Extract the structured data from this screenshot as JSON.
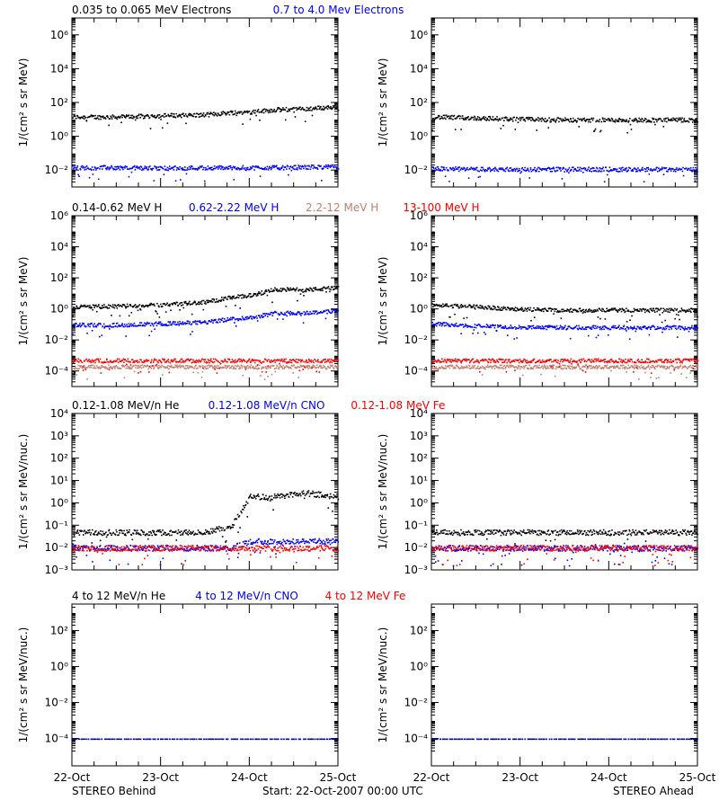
{
  "footer": {
    "left": "STEREO Behind",
    "center": "Start: 22-Oct-2007 00:00 UTC",
    "right": "STEREO Ahead"
  },
  "x_tick_labels": [
    "22-Oct",
    "23-Oct",
    "24-Oct",
    "25-Oct"
  ],
  "colors": {
    "black": "#000000",
    "blue": "#0000ff",
    "tan": "#c08070",
    "red": "#ff0000"
  },
  "chart_data": [
    {
      "type": "scatter",
      "panel": "electrons",
      "side": "behind",
      "yscale": "log",
      "ylabel": "1/(cm² s sr MeV)",
      "ylim": [
        0.001,
        10000000
      ],
      "yticks": [
        {
          "v": 0.01,
          "label": "10⁻²"
        },
        {
          "v": 1,
          "label": "10⁰"
        },
        {
          "v": 100,
          "label": "10²"
        },
        {
          "v": 10000,
          "label": "10⁴"
        },
        {
          "v": 1000000,
          "label": "10⁶"
        }
      ],
      "x": [
        0,
        0.5,
        1,
        1.5,
        1.8,
        2,
        2.3,
        2.6,
        3
      ],
      "series": [
        {
          "name": "0.035 to 0.065 MeV Electrons",
          "color": "#000000",
          "values": [
            15,
            15,
            18,
            20,
            28,
            30,
            40,
            45,
            60
          ]
        },
        {
          "name": "0.7 to 4.0 Mev Electrons",
          "color": "#0000ff",
          "values": [
            0.015,
            0.015,
            0.014,
            0.015,
            0.015,
            0.015,
            0.015,
            0.016,
            0.017
          ]
        }
      ]
    },
    {
      "type": "scatter",
      "panel": "electrons",
      "side": "ahead",
      "yscale": "log",
      "ylabel": "1/(cm² s sr MeV)",
      "ylim": [
        0.001,
        10000000
      ],
      "yticks": [
        {
          "v": 0.01,
          "label": "10⁻²"
        },
        {
          "v": 1,
          "label": "10⁰"
        },
        {
          "v": 100,
          "label": "10²"
        },
        {
          "v": 10000,
          "label": "10⁴"
        },
        {
          "v": 1000000,
          "label": "10⁶"
        }
      ],
      "x": [
        0,
        0.5,
        1,
        1.5,
        2,
        2.5,
        3
      ],
      "series": [
        {
          "name": "0.035 to 0.065 MeV Electrons",
          "color": "#000000",
          "values": [
            15,
            13,
            11,
            10,
            10,
            10,
            10
          ]
        },
        {
          "name": "0.7 to 4.0 Mev Electrons",
          "color": "#0000ff",
          "values": [
            0.013,
            0.012,
            0.012,
            0.012,
            0.012,
            0.012,
            0.012
          ]
        }
      ]
    },
    {
      "type": "scatter",
      "panel": "protons",
      "side": "behind",
      "yscale": "log",
      "ylabel": "1/(cm² s sr MeV)",
      "ylim": [
        1e-05,
        1000000
      ],
      "yticks": [
        {
          "v": 0.0001,
          "label": "10⁻⁴"
        },
        {
          "v": 0.01,
          "label": "10⁻²"
        },
        {
          "v": 1,
          "label": "10⁰"
        },
        {
          "v": 100,
          "label": "10²"
        },
        {
          "v": 10000,
          "label": "10⁴"
        },
        {
          "v": 1000000,
          "label": "10⁶"
        }
      ],
      "x": [
        0,
        0.5,
        1,
        1.5,
        1.8,
        2,
        2.3,
        2.6,
        3
      ],
      "series": [
        {
          "name": "0.14-0.62 MeV H",
          "color": "#000000",
          "values": [
            1.5,
            1.6,
            2,
            3,
            6,
            8,
            20,
            18,
            25
          ]
        },
        {
          "name": "0.62-2.22 MeV H",
          "color": "#0000ff",
          "values": [
            0.1,
            0.1,
            0.12,
            0.15,
            0.25,
            0.3,
            0.6,
            0.6,
            0.8
          ]
        },
        {
          "name": "2.2-12 MeV H",
          "color": "#c08070",
          "values": [
            0.0002,
            0.0002,
            0.0002,
            0.0002,
            0.0002,
            0.0002,
            0.0002,
            0.0002,
            0.0002
          ]
        },
        {
          "name": "13-100 MeV H",
          "color": "#ff0000",
          "values": [
            0.0005,
            0.0005,
            0.0005,
            0.0005,
            0.0005,
            0.0005,
            0.0005,
            0.0005,
            0.0005
          ]
        }
      ]
    },
    {
      "type": "scatter",
      "panel": "protons",
      "side": "ahead",
      "yscale": "log",
      "ylabel": "1/(cm² s sr MeV)",
      "ylim": [
        1e-05,
        1000000
      ],
      "yticks": [
        {
          "v": 0.0001,
          "label": "10⁻⁴"
        },
        {
          "v": 0.01,
          "label": "10⁻²"
        },
        {
          "v": 1,
          "label": "10⁰"
        },
        {
          "v": 100,
          "label": "10²"
        },
        {
          "v": 10000,
          "label": "10⁴"
        },
        {
          "v": 1000000,
          "label": "10⁶"
        }
      ],
      "x": [
        0,
        0.5,
        1,
        1.5,
        2,
        2.5,
        3
      ],
      "series": [
        {
          "name": "0.14-0.62 MeV H",
          "color": "#000000",
          "values": [
            2,
            1.5,
            1,
            0.9,
            0.9,
            0.9,
            0.9
          ]
        },
        {
          "name": "0.62-2.22 MeV H",
          "color": "#0000ff",
          "values": [
            0.12,
            0.09,
            0.07,
            0.07,
            0.07,
            0.07,
            0.07
          ]
        },
        {
          "name": "2.2-12 MeV H",
          "color": "#c08070",
          "values": [
            0.0002,
            0.0002,
            0.0002,
            0.0002,
            0.0002,
            0.0002,
            0.0002
          ]
        },
        {
          "name": "13-100 MeV H",
          "color": "#ff0000",
          "values": [
            0.0005,
            0.0005,
            0.0005,
            0.0005,
            0.0005,
            0.0005,
            0.0005
          ]
        }
      ]
    },
    {
      "type": "scatter",
      "panel": "heavy-low",
      "side": "behind",
      "yscale": "log",
      "ylabel": "1/(cm² s sr MeV/nuc.)",
      "ylim": [
        0.001,
        10000
      ],
      "yticks": [
        {
          "v": 0.001,
          "label": "10⁻³"
        },
        {
          "v": 0.01,
          "label": "10⁻²"
        },
        {
          "v": 0.1,
          "label": "10⁻¹"
        },
        {
          "v": 1,
          "label": "10⁰"
        },
        {
          "v": 10,
          "label": "10¹"
        },
        {
          "v": 100,
          "label": "10²"
        },
        {
          "v": 1000,
          "label": "10³"
        },
        {
          "v": 10000,
          "label": "10⁴"
        }
      ],
      "x": [
        0,
        0.5,
        1,
        1.5,
        1.8,
        2,
        2.3,
        2.6,
        3
      ],
      "series": [
        {
          "name": "0.12-1.08 MeV/n He",
          "color": "#000000",
          "values": [
            0.05,
            0.05,
            0.05,
            0.05,
            0.1,
            2,
            2,
            3,
            2
          ]
        },
        {
          "name": "0.12-1.08 MeV/n CNO",
          "color": "#0000ff",
          "values": [
            0.01,
            0.01,
            0.01,
            0.01,
            0.01,
            0.02,
            0.02,
            0.02,
            0.02
          ]
        },
        {
          "name": "0.12-1.08 MeV Fe",
          "color": "#ff0000",
          "values": [
            0.01,
            0.01,
            0.01,
            0.01,
            0.01,
            0.01,
            0.01,
            0.01,
            0.01
          ]
        }
      ]
    },
    {
      "type": "scatter",
      "panel": "heavy-low",
      "side": "ahead",
      "yscale": "log",
      "ylabel": "1/(cm² s sr MeV/nuc.)",
      "ylim": [
        0.001,
        10000
      ],
      "yticks": [
        {
          "v": 0.001,
          "label": "10⁻³"
        },
        {
          "v": 0.01,
          "label": "10⁻²"
        },
        {
          "v": 0.1,
          "label": "10⁻¹"
        },
        {
          "v": 1,
          "label": "10⁰"
        },
        {
          "v": 10,
          "label": "10¹"
        },
        {
          "v": 100,
          "label": "10²"
        },
        {
          "v": 1000,
          "label": "10³"
        },
        {
          "v": 10000,
          "label": "10⁴"
        }
      ],
      "x": [
        0,
        0.5,
        1,
        1.5,
        2,
        2.5,
        3
      ],
      "series": [
        {
          "name": "0.12-1.08 MeV/n He",
          "color": "#000000",
          "values": [
            0.05,
            0.05,
            0.05,
            0.05,
            0.05,
            0.05,
            0.05
          ]
        },
        {
          "name": "0.12-1.08 MeV/n CNO",
          "color": "#0000ff",
          "values": [
            0.01,
            0.01,
            0.01,
            0.01,
            0.01,
            0.01,
            0.01
          ]
        },
        {
          "name": "0.12-1.08 MeV Fe",
          "color": "#ff0000",
          "values": [
            0.01,
            0.01,
            0.01,
            0.01,
            0.01,
            0.01,
            0.01
          ]
        }
      ]
    },
    {
      "type": "scatter",
      "panel": "heavy-high",
      "side": "behind",
      "yscale": "log",
      "ylabel": "1/(cm² s sr MeV/nuc.)",
      "ylim": [
        3e-06,
        3000
      ],
      "yticks": [
        {
          "v": 0.0001,
          "label": "10⁻⁴"
        },
        {
          "v": 0.01,
          "label": "10⁻²"
        },
        {
          "v": 1,
          "label": "10⁰"
        },
        {
          "v": 100,
          "label": "10²"
        }
      ],
      "x": [
        0,
        3
      ],
      "series": [
        {
          "name": "4 to 12 MeV/n He",
          "color": "#000000",
          "values": [
            0.0001,
            0.0001
          ]
        },
        {
          "name": "4 to 12 MeV/n CNO",
          "color": "#0000ff",
          "values": [
            0.0001,
            0.0001
          ]
        },
        {
          "name": "4 to 12 MeV Fe",
          "color": "#ff0000",
          "values": []
        }
      ]
    },
    {
      "type": "scatter",
      "panel": "heavy-high",
      "side": "ahead",
      "yscale": "log",
      "ylabel": "1/(cm² s sr MeV/nuc.)",
      "ylim": [
        3e-06,
        3000
      ],
      "yticks": [
        {
          "v": 0.0001,
          "label": "10⁻⁴"
        },
        {
          "v": 0.01,
          "label": "10⁻²"
        },
        {
          "v": 1,
          "label": "10⁰"
        },
        {
          "v": 100,
          "label": "10²"
        }
      ],
      "x": [
        0,
        3
      ],
      "series": [
        {
          "name": "4 to 12 MeV/n He",
          "color": "#000000",
          "values": [
            0.0001,
            0.0001
          ]
        },
        {
          "name": "4 to 12 MeV/n CNO",
          "color": "#0000ff",
          "values": [
            0.0001,
            0.0001
          ]
        },
        {
          "name": "4 to 12 MeV Fe",
          "color": "#ff0000",
          "values": []
        }
      ]
    }
  ]
}
